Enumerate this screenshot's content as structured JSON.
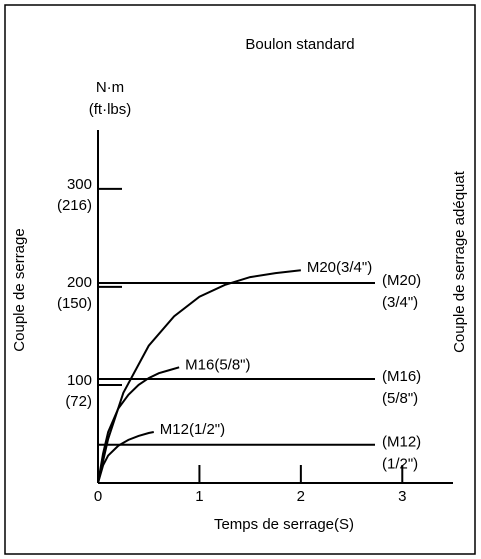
{
  "chart_data": {
    "type": "line",
    "title": "Boulon standard",
    "y_unit": "N·m",
    "y_unit_alt": "(ft·lbs)",
    "ylabel": "Couple de serrage",
    "y2label": "Couple de serrage adéquat",
    "xlabel": "Temps de serrage(S)",
    "xlim": [
      0,
      3.5
    ],
    "xticks": [
      0,
      1,
      2,
      3
    ],
    "ylim": [
      0,
      360
    ],
    "yticks": [
      100,
      200,
      300
    ],
    "ytick_alt_labels": [
      "(72)",
      "(150)",
      "(216)"
    ],
    "series": [
      {
        "name": "M12(1/2\")",
        "color": "#000000",
        "x": [
          0,
          0.05,
          0.1,
          0.2,
          0.3,
          0.4,
          0.5,
          0.55
        ],
        "values": [
          0,
          18,
          28,
          38,
          44,
          48,
          51,
          52
        ]
      },
      {
        "name": "M16(5/8\")",
        "color": "#000000",
        "x": [
          0,
          0.05,
          0.1,
          0.2,
          0.3,
          0.4,
          0.5,
          0.6,
          0.7,
          0.8
        ],
        "values": [
          0,
          30,
          52,
          76,
          90,
          100,
          107,
          112,
          115,
          118
        ]
      },
      {
        "name": "M20(3/4\")",
        "color": "#000000",
        "x": [
          0,
          0.1,
          0.25,
          0.5,
          0.75,
          1,
          1.25,
          1.5,
          1.75,
          2
        ],
        "values": [
          0,
          45,
          92,
          140,
          170,
          190,
          202,
          210,
          214,
          217
        ]
      }
    ],
    "levels": [
      {
        "value": 39,
        "label_lines": [
          "(M12)",
          "(1/2\")"
        ]
      },
      {
        "value": 106,
        "label_lines": [
          "(M16)",
          "(5/8\")"
        ]
      },
      {
        "value": 204,
        "label_lines": [
          "(M20)",
          "(3/4\")"
        ]
      }
    ]
  }
}
